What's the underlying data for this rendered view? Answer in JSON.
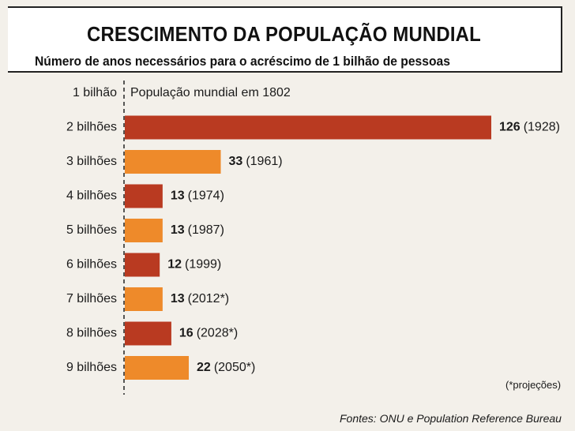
{
  "title": "CRESCIMENTO DA POPULAÇÃO MUNDIAL",
  "subtitle": "Número de anos necessários para o acréscimo de 1 bilhão de pessoas",
  "footnote": "(*projeções)",
  "source": "Fontes: ONU e Population Reference Bureau",
  "colors": {
    "dark": "#b93a21",
    "light": "#ee8a2a"
  },
  "chart_data": {
    "type": "bar",
    "orientation": "horizontal",
    "first_row": {
      "category": "1 bilhão",
      "label": "População mundial em 1802"
    },
    "categories": [
      "2 bilhões",
      "3 bilhões",
      "4 bilhões",
      "5 bilhões",
      "6 bilhões",
      "7 bilhões",
      "8 bilhões",
      "9 bilhões"
    ],
    "values": [
      126,
      33,
      13,
      13,
      12,
      13,
      16,
      22
    ],
    "years": [
      "(1928)",
      "(1961)",
      "(1974)",
      "(1987)",
      "(1999)",
      "(2012*)",
      "(2028*)",
      "(2050*)"
    ],
    "bar_colors": [
      "dark",
      "light",
      "dark",
      "light",
      "dark",
      "light",
      "dark",
      "light"
    ],
    "xlim": [
      0,
      126
    ]
  }
}
